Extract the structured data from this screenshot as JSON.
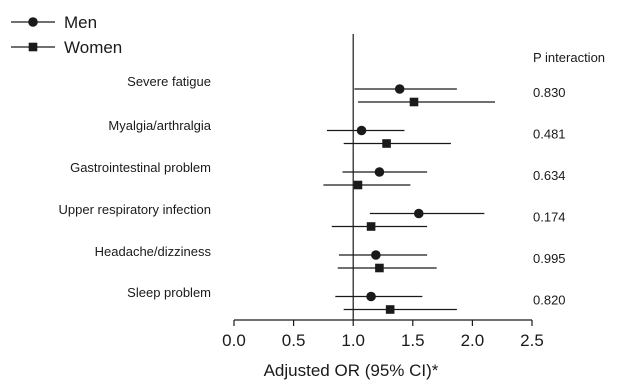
{
  "chart_data": {
    "type": "forest",
    "title": "",
    "xlabel": "Adjusted OR (95% CI)*",
    "xlim": [
      0.0,
      2.5
    ],
    "xticks": [
      "0.0",
      "0.5",
      "1.0",
      "1.5",
      "2.0",
      "2.5"
    ],
    "reference_line": 1.0,
    "legend": {
      "placement": "top-left",
      "entries": [
        {
          "name": "Men",
          "marker": "circle"
        },
        {
          "name": "Women",
          "marker": "square"
        }
      ]
    },
    "p_header": "P interaction",
    "categories": [
      "Severe fatigue",
      "Myalgia/arthralgia",
      "Gastrointestinal problem",
      "Upper respiratory infection",
      "Headache/dizziness",
      "Sleep problem"
    ],
    "p_values": [
      "0.830",
      "0.481",
      "0.634",
      "0.174",
      "0.995",
      "0.820"
    ],
    "series": [
      {
        "name": "Men",
        "marker": "circle",
        "or": [
          1.39,
          1.07,
          1.22,
          1.55,
          1.19,
          1.15
        ],
        "lower": [
          1.01,
          0.78,
          0.91,
          1.14,
          0.88,
          0.85
        ],
        "upper": [
          1.87,
          1.43,
          1.62,
          2.1,
          1.62,
          1.58
        ]
      },
      {
        "name": "Women",
        "marker": "square",
        "or": [
          1.51,
          1.28,
          1.04,
          1.15,
          1.22,
          1.31
        ],
        "lower": [
          1.04,
          0.92,
          0.75,
          0.82,
          0.87,
          0.92
        ],
        "upper": [
          2.19,
          1.82,
          1.48,
          1.62,
          1.7,
          1.87
        ]
      }
    ]
  }
}
